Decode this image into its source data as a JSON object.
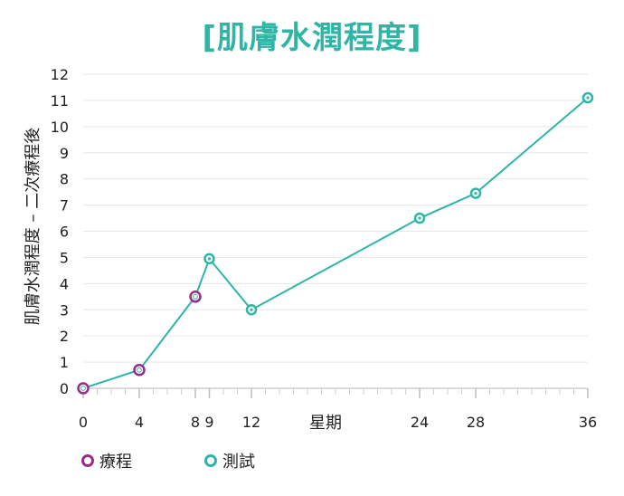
{
  "chart_data": {
    "type": "line",
    "title": "[肌膚水潤程度]",
    "xlabel": "星期",
    "ylabel": "肌膚水潤程度 – 二次療程後",
    "xlim": [
      0,
      36
    ],
    "ylim": [
      0,
      12
    ],
    "x_ticks": [
      0,
      4,
      8,
      9,
      12,
      24,
      28,
      36
    ],
    "y_ticks": [
      0,
      1,
      2,
      3,
      4,
      5,
      6,
      7,
      8,
      9,
      10,
      11,
      12
    ],
    "grid": true,
    "legend_position": "bottom-left",
    "line_color": "#2fb5a6",
    "series": [
      {
        "name": "療程",
        "color": "#9b2a8a",
        "x": [
          0,
          4,
          8
        ],
        "y": [
          0,
          0.7,
          3.5
        ]
      },
      {
        "name": "測試",
        "color": "#2fb5a6",
        "x": [
          0,
          4,
          8,
          9,
          12,
          24,
          28,
          36
        ],
        "y": [
          0,
          0.7,
          3.5,
          4.95,
          3,
          6.5,
          7.45,
          11.1
        ]
      }
    ]
  },
  "legend": {
    "treatment_label": "療程",
    "test_label": "測試"
  }
}
